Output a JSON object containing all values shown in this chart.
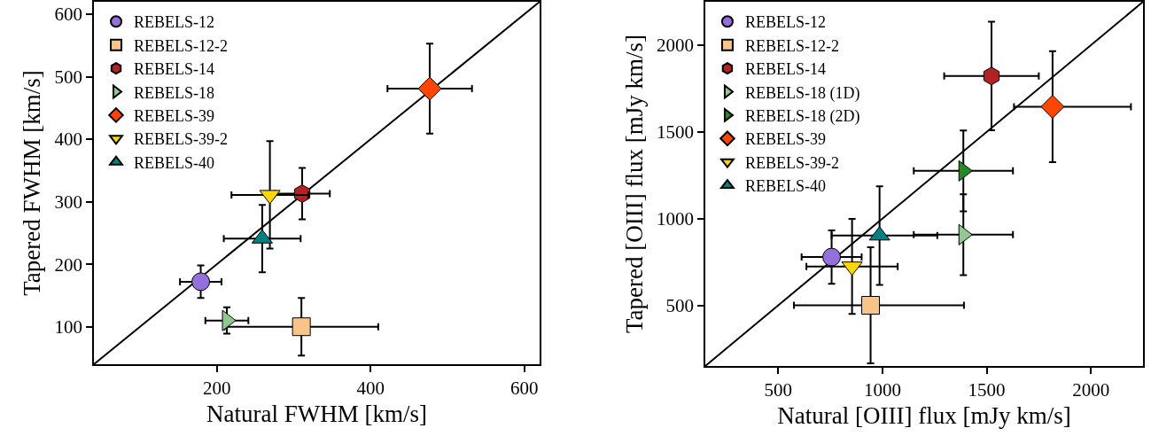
{
  "chart_data": [
    {
      "type": "scatter",
      "xlabel": "Natural FWHM [km/s]",
      "ylabel": "Tapered FWHM [km/s]",
      "xlim": [
        40,
        620
      ],
      "ylim": [
        40,
        620
      ],
      "xticks": [
        200,
        400,
        600
      ],
      "yticks": [
        100,
        200,
        300,
        400,
        500,
        600
      ],
      "grid": false,
      "legend": "top left",
      "series": [
        {
          "name": "REBELS-12",
          "color": "#9370db",
          "marker": "circle",
          "x": [
            179
          ],
          "values": [
            172
          ],
          "errors": [
            26
          ],
          "xerrors": [
            27
          ]
        },
        {
          "name": "REBELS-12-2",
          "color": "#f9c48a",
          "marker": "square",
          "x": [
            310
          ],
          "values": [
            100
          ],
          "errors": [
            46
          ],
          "xerrors": [
            100
          ]
        },
        {
          "name": "REBELS-14",
          "color": "#b22222",
          "x": [
            311
          ],
          "values": [
            313
          ],
          "errors": [
            41
          ],
          "xerrors": [
            36
          ]
        },
        {
          "name": "REBELS-18",
          "color": "#90c890",
          "marker": "triangle-right",
          "x": [
            213
          ],
          "values": [
            110
          ],
          "errors": [
            21
          ],
          "xerrors": [
            28
          ]
        },
        {
          "name": "REBELS-39",
          "color": "#ff4500",
          "marker": "diamond",
          "x": [
            477
          ],
          "values": [
            481
          ],
          "errors": [
            72
          ],
          "xerrors": [
            55
          ]
        },
        {
          "name": "REBELS-39-2",
          "color": "#ffd700",
          "marker": "triangle-down",
          "x": [
            269
          ],
          "values": [
            311
          ],
          "errors": [
            86
          ],
          "xerrors": [
            50
          ]
        },
        {
          "name": "REBELS-40",
          "color": "#008080",
          "marker": "triangle-up",
          "x": [
            259
          ],
          "values": [
            241
          ],
          "errors": [
            54
          ],
          "xerrors": [
            50
          ]
        },
        {
          "type": "line",
          "color": "#000000",
          "x": [
            40,
            620
          ],
          "values": [
            40,
            620
          ]
        }
      ]
    },
    {
      "type": "scatter",
      "xlabel": "Natural [OIII] flux [mJy km/s]",
      "ylabel": "Tapered [OIII] flux [mJy km/s]",
      "xlim": [
        150,
        2250
      ],
      "ylim": [
        150,
        2250
      ],
      "xticks": [
        500,
        1000,
        1500,
        2000
      ],
      "yticks": [
        500,
        1000,
        1500,
        2000
      ],
      "grid": false,
      "legend": "top left",
      "series": [
        {
          "name": "REBELS-12",
          "color": "#9370db",
          "marker": "circle",
          "x": [
            756
          ],
          "values": [
            778
          ],
          "errors": [
            154
          ],
          "xerrors": [
            144
          ]
        },
        {
          "name": "REBELS-12-2",
          "color": "#f9c48a",
          "marker": "square",
          "x": [
            943
          ],
          "values": [
            500
          ],
          "errors": [
            335
          ],
          "xerrors": [
            [
              575,
              1391
            ]
          ]
        },
        {
          "name": "REBELS-14",
          "color": "#b22222",
          "x": [
            1523
          ],
          "values": [
            1822
          ],
          "errors": [
            313
          ],
          "xerrors": [
            227
          ]
        },
        {
          "name": "REBELS-18 (1D)",
          "color": "#90c890",
          "marker": "triangle-right",
          "x": [
            1388
          ],
          "values": [
            907
          ],
          "errors": [
            233
          ],
          "xerrors": [
            238
          ]
        },
        {
          "name": "REBELS-18 (2D)",
          "color": "#228b22",
          "marker": "triangle-right",
          "x": [
            1388
          ],
          "values": [
            1275
          ],
          "errors": [
            233
          ],
          "xerrors": [
            238
          ]
        },
        {
          "name": "REBELS-39",
          "color": "#ff4500",
          "marker": "diamond",
          "x": [
            1816
          ],
          "values": [
            1645
          ],
          "errors": [
            320
          ],
          "xerrors": [
            [
              1631,
              2192
            ]
          ]
        },
        {
          "name": "REBELS-39-2",
          "color": "#ffd700",
          "marker": "triangle-down",
          "x": [
            854
          ],
          "values": [
            724
          ],
          "errors": [
            274
          ],
          "xerrors": [
            219
          ]
        },
        {
          "name": "REBELS-40",
          "color": "#008080",
          "marker": "triangle-up",
          "x": [
            986
          ],
          "values": [
            902
          ],
          "errors": [
            284
          ],
          "xerrors": [
            [
              756,
              1263
            ]
          ]
        },
        {
          "type": "line",
          "color": "#000000",
          "x": [
            150,
            2250
          ],
          "values": [
            150,
            2250
          ]
        }
      ]
    }
  ]
}
